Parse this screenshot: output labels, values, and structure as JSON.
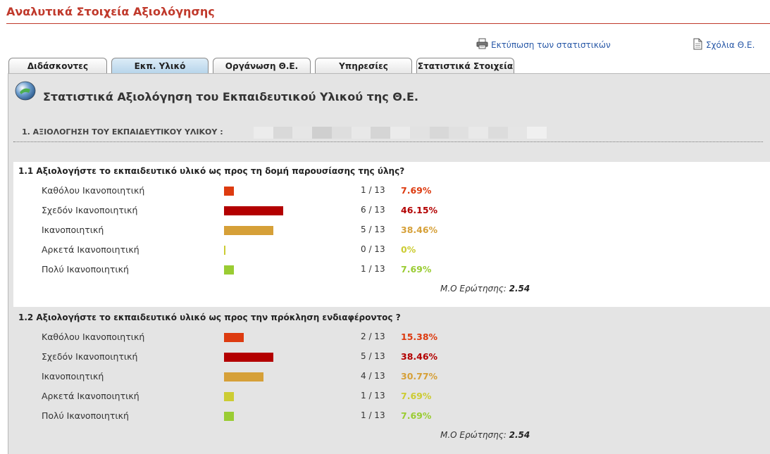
{
  "page_title": "Αναλυτικά Στοιχεία Αξιολόγησης",
  "links": {
    "print": "Εκτύπωση των στατιστικών",
    "comments": "Σχόλια Θ.Ε."
  },
  "tabs": [
    {
      "label": "Διδάσκοντες",
      "active": false
    },
    {
      "label": "Εκπ. Υλικό",
      "active": true
    },
    {
      "label": "Οργάνωση Θ.Ε.",
      "active": false
    },
    {
      "label": "Υπηρεσίες",
      "active": false
    },
    {
      "label": "Στατιστικά Στοιχεία",
      "active": false
    }
  ],
  "section_heading": "Στατιστικά Αξιολόγηση του Εκπαιδευτικού Υλικού της Θ.Ε.",
  "group_title": "1. ΑΞΙΟΛΟΓΗΣΗ ΤΟΥ ΕΚΠΑΙΔΕΥΤΙΚΟΥ ΥΛΙΚΟΥ :",
  "avg_label": "Μ.Ο Ερώτησης:",
  "colors": {
    "kathelou": "#dd3b10",
    "sxedon": "#b30000",
    "ikanopoiitiki": "#d6a038",
    "arketa": "#cccc33",
    "poly": "#9acc33"
  },
  "questions": [
    {
      "title": "1.1 Αξιολογήστε το εκπαιδευτικό υλικό ως προς τη δομή παρουσίασης της ύλης?",
      "average": "2.54",
      "answers": [
        {
          "label": "Καθόλου Ικανοποιητική",
          "count": "1 / 13",
          "percent": "7.69%",
          "value": 7.69
        },
        {
          "label": "Σχεδόν Ικανοποιητική",
          "count": "6 / 13",
          "percent": "46.15%",
          "value": 46.15
        },
        {
          "label": "Ικανοποιητική",
          "count": "5 / 13",
          "percent": "38.46%",
          "value": 38.46
        },
        {
          "label": "Αρκετά Ικανοποιητική",
          "count": "0 / 13",
          "percent": "0%",
          "value": 0
        },
        {
          "label": "Πολύ Ικανοποιητική",
          "count": "1 / 13",
          "percent": "7.69%",
          "value": 7.69
        }
      ]
    },
    {
      "title": "1.2 Αξιολογήστε το εκπαιδευτικό υλικό ως προς την πρόκληση ενδιαφέροντος ?",
      "average": "2.54",
      "answers": [
        {
          "label": "Καθόλου Ικανοποιητική",
          "count": "2 / 13",
          "percent": "15.38%",
          "value": 15.38
        },
        {
          "label": "Σχεδόν Ικανοποιητική",
          "count": "5 / 13",
          "percent": "38.46%",
          "value": 38.46
        },
        {
          "label": "Ικανοποιητική",
          "count": "4 / 13",
          "percent": "30.77%",
          "value": 30.77
        },
        {
          "label": "Αρκετά Ικανοποιητική",
          "count": "1 / 13",
          "percent": "7.69%",
          "value": 7.69
        },
        {
          "label": "Πολύ Ικανοποιητική",
          "count": "1 / 13",
          "percent": "7.69%",
          "value": 7.69
        }
      ]
    }
  ]
}
